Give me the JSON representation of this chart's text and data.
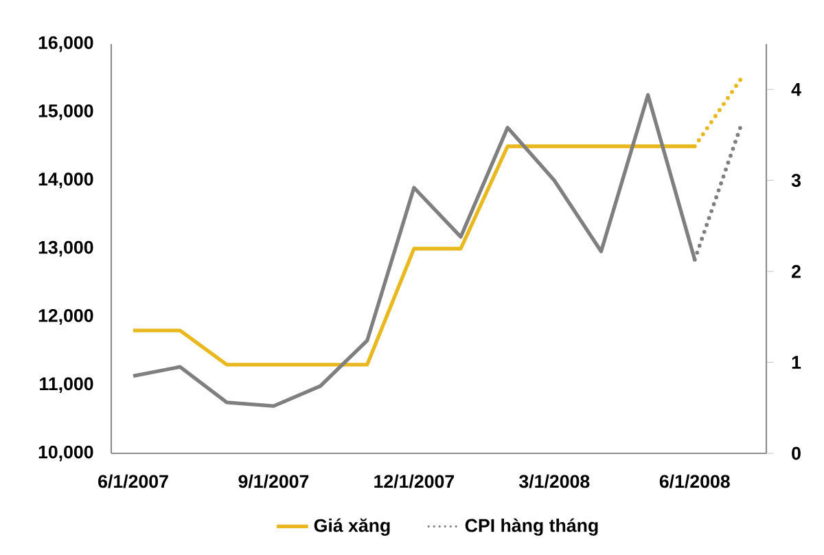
{
  "chart_data": {
    "type": "line",
    "categories": [
      "6/1/2007",
      null,
      null,
      "9/1/2007",
      null,
      null,
      "12/1/2007",
      null,
      null,
      "3/1/2008",
      null,
      null,
      "6/1/2008",
      null
    ],
    "series": [
      {
        "name": "Giá xăng",
        "color": "#e8b81e",
        "values": [
          11800,
          11800,
          11300,
          11300,
          11300,
          11300,
          13000,
          13000,
          14500,
          14500,
          14500,
          14500,
          14500,
          null
        ]
      },
      {
        "color": "#e8b81e",
        "line_style": "dotted",
        "values": [
          null,
          null,
          null,
          null,
          null,
          null,
          null,
          null,
          null,
          null,
          null,
          null,
          14500,
          15500
        ]
      },
      {
        "color": "#7f7f7f",
        "axis": "y2",
        "values": [
          0.85,
          0.95,
          0.56,
          0.52,
          0.74,
          1.24,
          2.92,
          2.38,
          3.58,
          3.0,
          2.22,
          3.94,
          2.13,
          null
        ]
      },
      {
        "name": "CPI hàng tháng",
        "color": "#7f7f7f",
        "axis": "y2",
        "line_style": "dotted",
        "values": [
          null,
          null,
          null,
          null,
          null,
          null,
          null,
          null,
          null,
          null,
          null,
          null,
          2.13,
          3.62
        ]
      }
    ],
    "ylim": [
      10000,
      16000
    ],
    "yticks": [
      {
        "value": 10000,
        "label": "10,000"
      },
      {
        "value": 11000,
        "label": "11,000"
      },
      {
        "value": 12000,
        "label": "12,000"
      },
      {
        "value": 13000,
        "label": "13,000"
      },
      {
        "value": 14000,
        "label": "14,000"
      },
      {
        "value": 15000,
        "label": "15,000"
      },
      {
        "value": 16000,
        "label": "16,000"
      }
    ],
    "y2lim": [
      0,
      4.5
    ],
    "y2ticks": [
      0,
      1,
      2,
      3,
      4
    ],
    "line_style": "solid",
    "marker": "none",
    "grid": false,
    "legend": "bottom"
  }
}
